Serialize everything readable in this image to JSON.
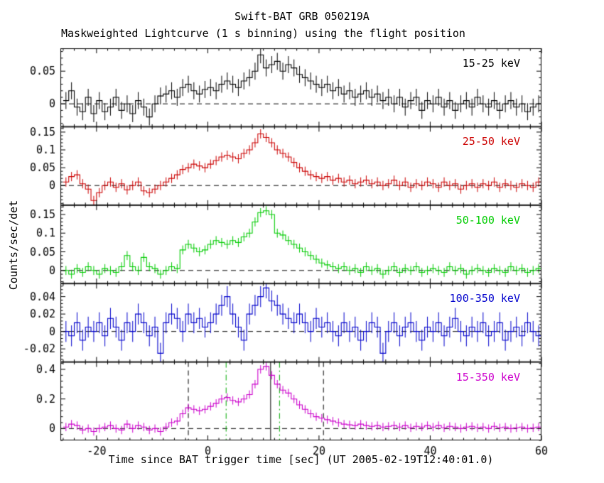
{
  "title": "Swift-BAT GRB 050219A",
  "subtitle": "Maskweighted Lightcurve (1 s binning) using the flight position",
  "ylabel": "Counts/sec/det",
  "xlabel": "Time since BAT trigger time [sec] (UT 2005-02-19T12:40:01.0)",
  "chart_data": {
    "type": "line",
    "style": "step-histogram lightcurve with error bars, 5 stacked panels sharing x axis",
    "x_start": -26,
    "bin_width": 1,
    "xlim": [
      -26.5,
      60
    ],
    "xticks": [
      -20,
      0,
      20,
      40,
      60
    ],
    "x_minor_step": 2,
    "zero_line": "black dashed horizontal at y=0 in every panel",
    "panels": [
      {
        "label": "15-25 keV",
        "color": "#000000",
        "ylim": [
          -0.035,
          0.085
        ],
        "yticks": [
          0,
          0.05
        ],
        "err": 0.013,
        "values": [
          0.005,
          0.02,
          -0.005,
          -0.012,
          0.01,
          -0.015,
          0.005,
          -0.012,
          -0.005,
          0.01,
          -0.01,
          0.0,
          -0.015,
          0.005,
          -0.005,
          -0.02,
          0.0,
          0.012,
          0.015,
          0.02,
          0.01,
          0.025,
          0.03,
          0.02,
          0.015,
          0.022,
          0.025,
          0.02,
          0.03,
          0.035,
          0.03,
          0.025,
          0.035,
          0.04,
          0.05,
          0.075,
          0.055,
          0.06,
          0.065,
          0.05,
          0.06,
          0.055,
          0.045,
          0.04,
          0.035,
          0.03,
          0.025,
          0.03,
          0.02,
          0.025,
          0.015,
          0.02,
          0.01,
          0.015,
          0.02,
          0.01,
          0.015,
          0.005,
          0.01,
          0.0,
          0.01,
          -0.005,
          0.005,
          0.01,
          -0.01,
          0.005,
          0.0,
          0.01,
          -0.005,
          0.005,
          -0.01,
          0.0,
          0.005,
          -0.005,
          0.01,
          0.0,
          -0.005,
          0.005,
          -0.01,
          0.0,
          0.005,
          -0.005,
          0.0,
          -0.012,
          -0.005,
          0.0
        ]
      },
      {
        "label": "25-50 keV",
        "color": "#cc0000",
        "ylim": [
          -0.055,
          0.165
        ],
        "yticks": [
          0,
          0.05,
          0.1,
          0.15
        ],
        "err": 0.013,
        "values": [
          0.01,
          0.025,
          0.03,
          0.005,
          -0.01,
          -0.042,
          -0.02,
          0.0,
          0.01,
          -0.005,
          0.005,
          -0.012,
          0.0,
          0.01,
          -0.015,
          -0.02,
          -0.01,
          0.0,
          0.01,
          0.02,
          0.03,
          0.045,
          0.05,
          0.06,
          0.055,
          0.05,
          0.06,
          0.07,
          0.08,
          0.085,
          0.08,
          0.075,
          0.09,
          0.1,
          0.12,
          0.145,
          0.135,
          0.12,
          0.1,
          0.09,
          0.08,
          0.065,
          0.05,
          0.04,
          0.03,
          0.025,
          0.02,
          0.025,
          0.015,
          0.02,
          0.01,
          0.015,
          0.005,
          0.01,
          0.015,
          0.005,
          0.01,
          0.0,
          0.005,
          0.015,
          0.0,
          0.01,
          -0.005,
          0.005,
          0.0,
          0.01,
          0.005,
          -0.005,
          0.01,
          0.0,
          0.005,
          -0.01,
          0.0,
          0.005,
          -0.005,
          0.005,
          0.0,
          0.01,
          -0.005,
          0.005,
          0.0,
          -0.005,
          0.005,
          0.0,
          -0.005,
          0.01
        ]
      },
      {
        "label": "50-100 keV",
        "color": "#00cc00",
        "ylim": [
          -0.035,
          0.175
        ],
        "yticks": [
          0,
          0.05,
          0.1,
          0.15
        ],
        "err": 0.012,
        "values": [
          0.0,
          -0.01,
          0.005,
          -0.005,
          0.01,
          0.0,
          -0.01,
          0.005,
          0.0,
          -0.005,
          0.01,
          0.04,
          0.01,
          0.0,
          0.035,
          0.01,
          0.005,
          -0.01,
          0.0,
          0.01,
          0.005,
          0.055,
          0.07,
          0.06,
          0.05,
          0.055,
          0.07,
          0.08,
          0.075,
          0.07,
          0.08,
          0.075,
          0.09,
          0.1,
          0.13,
          0.155,
          0.16,
          0.15,
          0.1,
          0.095,
          0.08,
          0.07,
          0.06,
          0.05,
          0.04,
          0.03,
          0.02,
          0.015,
          0.01,
          0.005,
          0.01,
          0.0,
          0.005,
          -0.005,
          0.01,
          0.0,
          0.005,
          -0.01,
          0.0,
          0.01,
          -0.005,
          0.005,
          0.0,
          0.01,
          -0.005,
          0.0,
          0.005,
          0.0,
          -0.005,
          0.01,
          0.0,
          0.005,
          -0.01,
          0.0,
          0.005,
          0.0,
          -0.005,
          0.005,
          0.0,
          -0.005,
          0.01,
          0.0,
          0.005,
          -0.005,
          0.0,
          0.005
        ]
      },
      {
        "label": "100-350 keV",
        "color": "#0000cc",
        "ylim": [
          -0.035,
          0.055
        ],
        "yticks": [
          -0.02,
          0,
          0.02,
          0.04
        ],
        "err": 0.012,
        "values": [
          0.0,
          -0.005,
          0.01,
          -0.01,
          0.005,
          0.0,
          0.01,
          -0.005,
          0.015,
          0.005,
          -0.01,
          0.01,
          0.0,
          0.02,
          0.01,
          -0.005,
          0.005,
          -0.025,
          0.01,
          0.02,
          0.015,
          0.0,
          0.02,
          0.01,
          0.015,
          0.005,
          0.01,
          0.02,
          0.03,
          0.04,
          0.02,
          0.005,
          -0.01,
          0.02,
          0.03,
          0.04,
          0.05,
          0.035,
          0.03,
          0.02,
          0.015,
          0.01,
          0.02,
          0.01,
          0.0,
          0.015,
          0.005,
          0.01,
          0.0,
          -0.005,
          0.01,
          0.0,
          0.005,
          -0.01,
          0.0,
          0.01,
          0.005,
          -0.025,
          0.0,
          0.01,
          -0.005,
          0.005,
          0.01,
          0.0,
          -0.01,
          0.005,
          0.0,
          0.01,
          -0.005,
          0.005,
          0.015,
          0.0,
          -0.005,
          0.005,
          0.0,
          0.01,
          -0.005,
          0.0,
          0.01,
          -0.01,
          0.0,
          0.005,
          -0.005,
          0.01,
          0.0,
          -0.005
        ]
      },
      {
        "label": "15-350 keV",
        "color": "#cc00cc",
        "ylim": [
          -0.08,
          0.45
        ],
        "yticks": [
          0,
          0.2,
          0.4
        ],
        "err": 0.028,
        "values": [
          0.01,
          0.03,
          0.02,
          -0.01,
          0.0,
          -0.02,
          0.0,
          0.01,
          0.02,
          0.0,
          -0.01,
          0.03,
          0.0,
          0.02,
          0.01,
          -0.01,
          0.0,
          -0.02,
          0.01,
          0.04,
          0.05,
          0.1,
          0.14,
          0.13,
          0.12,
          0.13,
          0.15,
          0.17,
          0.2,
          0.21,
          0.19,
          0.18,
          0.2,
          0.23,
          0.3,
          0.4,
          0.42,
          0.36,
          0.3,
          0.26,
          0.24,
          0.2,
          0.16,
          0.13,
          0.1,
          0.08,
          0.07,
          0.06,
          0.05,
          0.04,
          0.03,
          0.025,
          0.02,
          0.03,
          0.02,
          0.015,
          0.02,
          0.01,
          0.015,
          0.02,
          0.01,
          0.02,
          0.005,
          0.015,
          0.01,
          0.02,
          0.01,
          0.02,
          0.005,
          0.015,
          0.01,
          0.0,
          0.01,
          0.015,
          0.005,
          0.01,
          0.0,
          0.015,
          0.005,
          0.01,
          0.0,
          0.005,
          0.01,
          0.0,
          0.005,
          0.01
        ],
        "vlines": [
          {
            "x": -3.5,
            "color": "#000000",
            "style": "dashed"
          },
          {
            "x": 3.3,
            "color": "#00aa00",
            "style": "dashdot"
          },
          {
            "x": 11.3,
            "color": "#000000",
            "style": "solid"
          },
          {
            "x": 12.9,
            "color": "#00aa00",
            "style": "dashdot"
          },
          {
            "x": 20.8,
            "color": "#000000",
            "style": "dashed"
          }
        ]
      }
    ]
  }
}
